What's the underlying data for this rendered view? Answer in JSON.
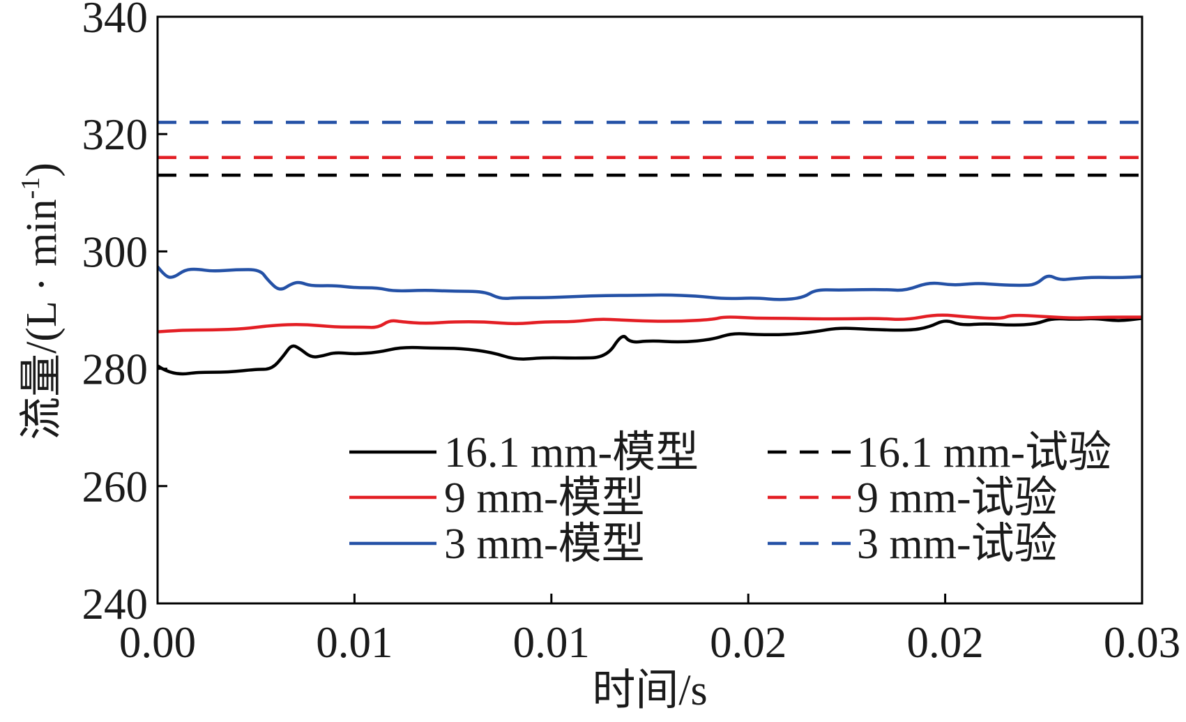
{
  "chart_data": {
    "type": "line",
    "xlabel": "时间/s",
    "ylabel": {
      "text": "流量/(L · min",
      "sup": "-1",
      "close": ")"
    },
    "xlim": [
      0,
      0.025
    ],
    "ylim": [
      240,
      340
    ],
    "x_ticks": {
      "values": [
        0,
        0.005,
        0.01,
        0.015,
        0.02,
        0.025
      ],
      "labels": [
        "0.00",
        "0.01",
        "0.01",
        "0.02",
        "0.02",
        "0.03"
      ]
    },
    "y_ticks": {
      "values": [
        240,
        260,
        280,
        300,
        320,
        340
      ],
      "labels": [
        "240",
        "260",
        "280",
        "300",
        "320",
        "340"
      ]
    },
    "grid": false,
    "legend": {
      "position": "lower-right",
      "columns": 2
    },
    "series": [
      {
        "name": "16.1 mm-模型",
        "color": "#000000",
        "dashed": false,
        "x": [
          0,
          0.0002,
          0.0006,
          0.001,
          0.0018,
          0.0025,
          0.0029,
          0.0032,
          0.0034,
          0.0036,
          0.0039,
          0.0042,
          0.0045,
          0.005,
          0.0056,
          0.0062,
          0.007,
          0.0077,
          0.0085,
          0.0091,
          0.0098,
          0.0106,
          0.0114,
          0.0118,
          0.012,
          0.0125,
          0.0133,
          0.0141,
          0.0146,
          0.0152,
          0.016,
          0.0167,
          0.0173,
          0.0181,
          0.0191,
          0.0196,
          0.02,
          0.0204,
          0.021,
          0.0217,
          0.0223,
          0.0227,
          0.0233,
          0.0238,
          0.0244,
          0.025
        ],
        "y": [
          280.5,
          279.6,
          279.0,
          279.4,
          279.4,
          279.9,
          279.9,
          282.2,
          284.1,
          283.5,
          281.9,
          282.2,
          282.8,
          282.5,
          282.8,
          283.7,
          283.5,
          283.5,
          282.8,
          281.5,
          281.9,
          281.8,
          281.9,
          286.1,
          284.4,
          284.8,
          284.5,
          285.0,
          286.1,
          285.8,
          285.8,
          286.3,
          287.0,
          286.7,
          286.5,
          287.1,
          288.4,
          287.4,
          287.7,
          287.4,
          287.6,
          288.6,
          288.4,
          288.6,
          288.1,
          288.6
        ]
      },
      {
        "name": "9 mm-模型",
        "color": "#e31e24",
        "dashed": false,
        "x": [
          0,
          0.0006,
          0.0014,
          0.0022,
          0.0029,
          0.0037,
          0.0045,
          0.0052,
          0.0056,
          0.0059,
          0.0062,
          0.0068,
          0.0075,
          0.0083,
          0.0091,
          0.0098,
          0.0106,
          0.0112,
          0.0118,
          0.0125,
          0.0133,
          0.0141,
          0.0144,
          0.0152,
          0.016,
          0.0167,
          0.0175,
          0.0183,
          0.019,
          0.0198,
          0.0206,
          0.0214,
          0.0217,
          0.0225,
          0.0233,
          0.024,
          0.025
        ],
        "y": [
          286.3,
          286.6,
          286.6,
          286.8,
          287.4,
          287.6,
          287.1,
          287.1,
          287.0,
          288.3,
          288.0,
          287.7,
          288.0,
          288.0,
          287.6,
          288.0,
          288.0,
          288.5,
          288.3,
          288.1,
          288.1,
          288.4,
          288.9,
          288.6,
          288.6,
          288.5,
          288.5,
          288.6,
          288.3,
          289.3,
          288.8,
          288.5,
          289.2,
          288.9,
          288.6,
          288.8,
          288.8
        ]
      },
      {
        "name": "3 mm-模型",
        "color": "#2451a6",
        "dashed": false,
        "x": [
          0,
          0.0002,
          0.0004,
          0.0007,
          0.001,
          0.0014,
          0.002,
          0.0026,
          0.0028,
          0.0031,
          0.0034,
          0.0036,
          0.0039,
          0.0045,
          0.005,
          0.0056,
          0.006,
          0.0068,
          0.0075,
          0.0083,
          0.0087,
          0.0091,
          0.0098,
          0.0106,
          0.0114,
          0.0121,
          0.0129,
          0.0137,
          0.0144,
          0.0152,
          0.0158,
          0.0164,
          0.0167,
          0.0173,
          0.0179,
          0.0185,
          0.019,
          0.0196,
          0.0202,
          0.0208,
          0.0214,
          0.0219,
          0.0223,
          0.0226,
          0.0229,
          0.0233,
          0.0238,
          0.0244,
          0.025
        ],
        "y": [
          297.4,
          295.7,
          295.5,
          296.9,
          297.0,
          296.6,
          296.9,
          296.9,
          295.1,
          293.2,
          294.5,
          294.8,
          294.1,
          294.2,
          293.8,
          293.8,
          293.2,
          293.4,
          293.2,
          293.2,
          291.9,
          292.1,
          292.1,
          292.3,
          292.5,
          292.5,
          292.6,
          292.4,
          291.9,
          292.1,
          291.7,
          292.1,
          293.5,
          293.4,
          293.5,
          293.5,
          293.3,
          294.8,
          294.2,
          294.6,
          294.3,
          294.2,
          294.3,
          296.1,
          295.1,
          295.4,
          295.6,
          295.5,
          295.7
        ]
      },
      {
        "name": "16.1 mm-试验",
        "color": "#000000",
        "dashed": true,
        "x": [
          0,
          0.025
        ],
        "y": [
          313,
          313
        ]
      },
      {
        "name": "9 mm-试验",
        "color": "#e31e24",
        "dashed": true,
        "x": [
          0,
          0.025
        ],
        "y": [
          316,
          316
        ]
      },
      {
        "name": "3 mm-试验",
        "color": "#2451a6",
        "dashed": true,
        "x": [
          0,
          0.025
        ],
        "y": [
          322,
          322
        ]
      }
    ]
  }
}
